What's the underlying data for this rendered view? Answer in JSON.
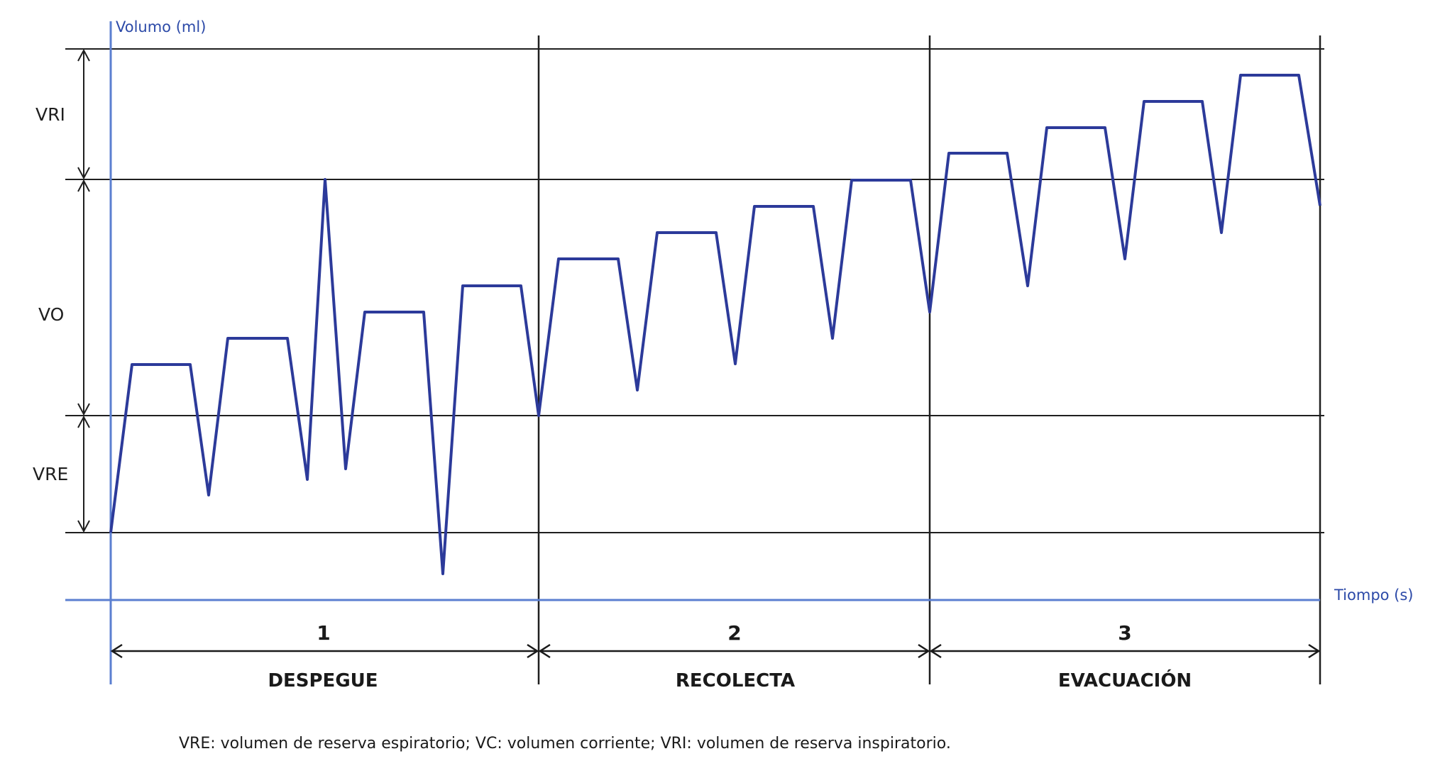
{
  "labels": {
    "y_axis": "Volumo (ml)",
    "x_axis": "Tiompo (s)"
  },
  "bands": [
    {
      "label": "VRI"
    },
    {
      "label": "VO"
    },
    {
      "label": "VRE"
    }
  ],
  "phases": [
    {
      "number": "1",
      "name": "DESPEGUE"
    },
    {
      "number": "2",
      "name": "RECOLECTA"
    },
    {
      "number": "3",
      "name": "EVACUACIÓN"
    }
  ],
  "footnote": "VRE: volumen de reserva espiratorio; VC: volumen corriente; VRI: volumen de reserva inspiratorio.",
  "colors": {
    "trace": "#2c3a9a",
    "axis": "#5b7fd0",
    "axis_text": "#2c4aa8",
    "grid": "#1f1f1f",
    "text": "#1a1a1a"
  }
}
